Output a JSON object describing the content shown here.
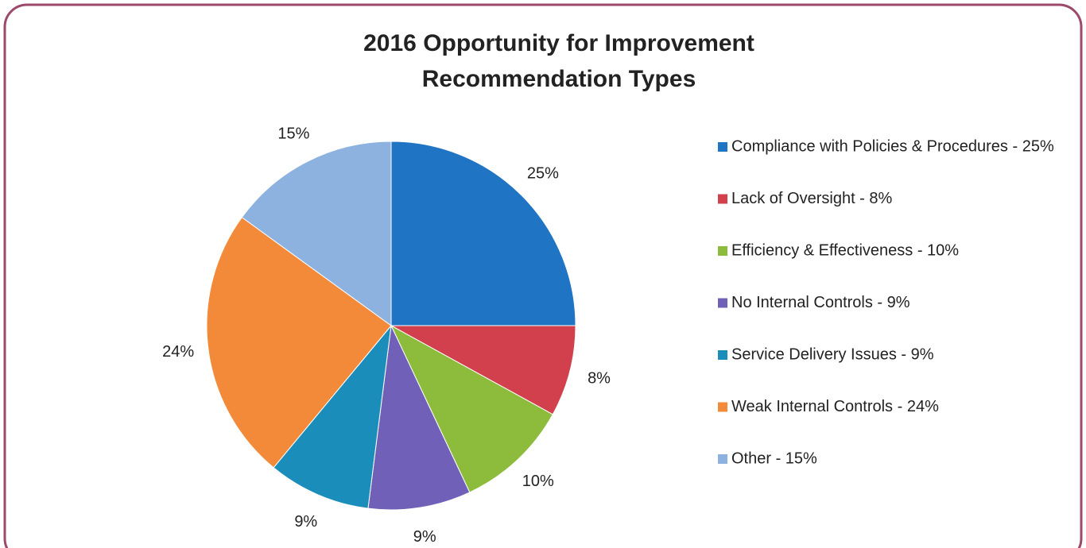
{
  "chart_data": {
    "type": "pie",
    "title": [
      "2016 Opportunity for Improvement",
      "Recommendation Types"
    ],
    "categories": [
      "Compliance with Policies & Procedures - 25%",
      "Lack of Oversight - 8%",
      "Efficiency & Effectiveness -  10%",
      "No Internal Controls -  9%",
      "Service Delivery Issues -  9%",
      "Weak Internal Controls -  24%",
      "Other - 15%"
    ],
    "values": [
      25,
      8,
      10,
      9,
      9,
      24,
      15
    ],
    "value_labels": [
      "25%",
      "8%",
      "10%",
      "9%",
      "9%",
      "24%",
      "15%"
    ],
    "colors": [
      "#1f74c4",
      "#d23f4d",
      "#8dbb3c",
      "#7060b8",
      "#1a8dbb",
      "#f28a3a",
      "#8db2e0"
    ],
    "legend": "right"
  }
}
